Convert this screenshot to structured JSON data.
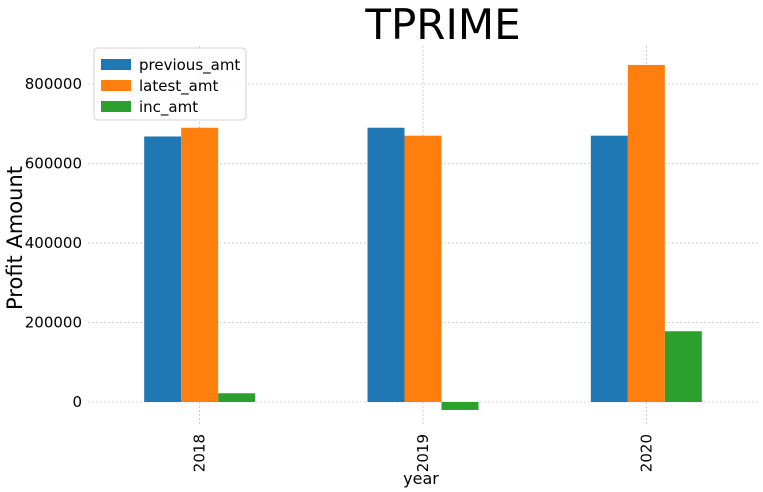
{
  "chart_data": {
    "type": "bar",
    "title": "TPRIME",
    "xlabel": "year",
    "ylabel": "Profit Amount",
    "categories": [
      "2018",
      "2019",
      "2020"
    ],
    "series": [
      {
        "name": "previous_amt",
        "color": "#1f77b4",
        "values": [
          668000,
          690000,
          670000
        ]
      },
      {
        "name": "latest_amt",
        "color": "#ff7f0e",
        "values": [
          690000,
          670000,
          848000
        ]
      },
      {
        "name": "inc_amt",
        "color": "#2ca02c",
        "values": [
          22000,
          -20000,
          178000
        ]
      }
    ],
    "yticks": [
      0,
      200000,
      400000,
      600000,
      800000
    ],
    "ylim": [
      -40000,
      900000
    ],
    "grid": true,
    "legend_position": "top-left"
  }
}
